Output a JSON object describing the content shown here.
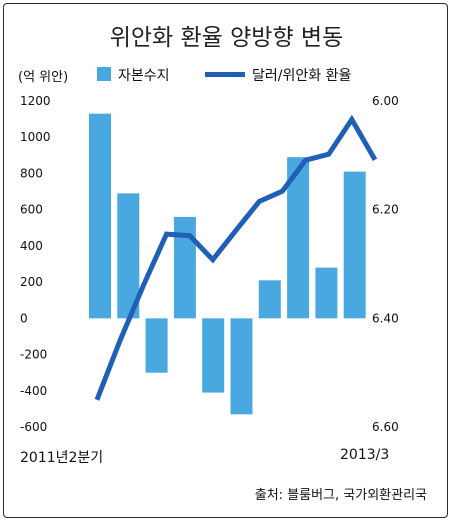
{
  "title": "위안화 환율 양방향 변동",
  "left_axis_unit": "(억 위안)",
  "source": "출처: 블룸버그, 국가외환관리국",
  "x_start_label": "2011년2분기",
  "x_end_label": "2013/3",
  "colors": {
    "bar": "#4aa8e0",
    "line": "#1f5fb8",
    "text": "#111111"
  },
  "chart_data": {
    "type": "bar",
    "title": "위안화 환율 양방향 변동",
    "legend": {
      "position": "top",
      "entries": [
        "자본수지",
        "달러/위안화 환율"
      ]
    },
    "left_axis": {
      "label": "(억 위안)",
      "ticks": [
        1200,
        1000,
        800,
        600,
        400,
        200,
        0,
        -200,
        -400,
        -600
      ],
      "ylim": [
        -600,
        1200
      ]
    },
    "right_axis": {
      "ticks": [
        "6.00",
        "6.20",
        "6.40",
        "6.60"
      ],
      "ylim": [
        6.6,
        6.0
      ],
      "inverted": true
    },
    "bars": {
      "name": "자본수지",
      "values": [
        1130,
        690,
        -300,
        560,
        -410,
        -530,
        210,
        890,
        280,
        810
      ]
    },
    "line": {
      "name": "달러/위안화 환율",
      "values": [
        6.55,
        6.44,
        6.34,
        6.245,
        6.248,
        6.292,
        6.238,
        6.185,
        6.166,
        6.109,
        6.098,
        6.034,
        6.108
      ]
    }
  }
}
